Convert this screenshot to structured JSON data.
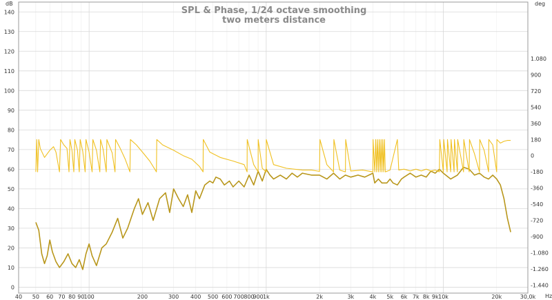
{
  "chart_data": {
    "type": "line",
    "title": "SPL & Phase, 1/24 octave smoothing",
    "subtitle": "two meters distance",
    "x_scale": "log",
    "xlim": [
      40,
      30000
    ],
    "x_unit": "Hz",
    "x_ticks": [
      40,
      50,
      60,
      70,
      80,
      90,
      100,
      200,
      300,
      400,
      500,
      600,
      700,
      800,
      900,
      1000,
      2000,
      3000,
      4000,
      5000,
      6000,
      7000,
      8000,
      9000,
      10000,
      20000,
      30000
    ],
    "x_tick_labels": [
      "40",
      "50",
      "60",
      "70",
      "80",
      "90",
      "100",
      "200",
      "300",
      "400",
      "500",
      "600",
      "700",
      "800",
      "900",
      "1k",
      "2k",
      "3k",
      "4k",
      "5k",
      "6k",
      "7k",
      "8k",
      "9k",
      "10k",
      "20k",
      "30,0k"
    ],
    "left_unit": "dB",
    "ylim": [
      -3,
      145
    ],
    "y_ticks": [
      0,
      10,
      20,
      30,
      40,
      50,
      60,
      70,
      80,
      90,
      100,
      110,
      120,
      130,
      140
    ],
    "right_unit": "deg",
    "y2lim": [
      -1530,
      1710
    ],
    "y2_ticks": [
      -1440,
      -1260,
      -1080,
      -900,
      -720,
      -540,
      -360,
      -180,
      0,
      180,
      360,
      540,
      720,
      900,
      1080
    ],
    "y2_tick_labels": [
      "-1.440",
      "-1.260",
      "-1.080",
      "-900",
      "-720",
      "-540",
      "-360",
      "-180",
      "0",
      "180",
      "360",
      "540",
      "720",
      "900",
      "1.080"
    ],
    "grid": true,
    "series": [
      {
        "role": "spl",
        "axis": "left",
        "color": "#b8961a",
        "points": [
          [
            50,
            33
          ],
          [
            52,
            29
          ],
          [
            54,
            17
          ],
          [
            56,
            12
          ],
          [
            58,
            16
          ],
          [
            60,
            24
          ],
          [
            62,
            18
          ],
          [
            65,
            13
          ],
          [
            68,
            10
          ],
          [
            72,
            13
          ],
          [
            76,
            17
          ],
          [
            80,
            12
          ],
          [
            84,
            10
          ],
          [
            88,
            14
          ],
          [
            92,
            9
          ],
          [
            96,
            17
          ],
          [
            100,
            22
          ],
          [
            104,
            16
          ],
          [
            110,
            11
          ],
          [
            118,
            20
          ],
          [
            125,
            22
          ],
          [
            135,
            28
          ],
          [
            145,
            35
          ],
          [
            155,
            25
          ],
          [
            165,
            30
          ],
          [
            180,
            40
          ],
          [
            190,
            45
          ],
          [
            200,
            37
          ],
          [
            215,
            43
          ],
          [
            230,
            34
          ],
          [
            250,
            45
          ],
          [
            270,
            48
          ],
          [
            285,
            38
          ],
          [
            300,
            50
          ],
          [
            320,
            45
          ],
          [
            340,
            41
          ],
          [
            360,
            47
          ],
          [
            380,
            38
          ],
          [
            400,
            49
          ],
          [
            420,
            45
          ],
          [
            450,
            52
          ],
          [
            480,
            54
          ],
          [
            500,
            53
          ],
          [
            520,
            56
          ],
          [
            550,
            55
          ],
          [
            580,
            52
          ],
          [
            620,
            54
          ],
          [
            650,
            51
          ],
          [
            700,
            54
          ],
          [
            750,
            51
          ],
          [
            800,
            57
          ],
          [
            850,
            52
          ],
          [
            900,
            59
          ],
          [
            950,
            54
          ],
          [
            1000,
            60
          ],
          [
            1050,
            57
          ],
          [
            1100,
            55
          ],
          [
            1200,
            57
          ],
          [
            1300,
            55
          ],
          [
            1400,
            58
          ],
          [
            1500,
            56
          ],
          [
            1600,
            58
          ],
          [
            1800,
            57
          ],
          [
            2000,
            57
          ],
          [
            2200,
            55
          ],
          [
            2400,
            58
          ],
          [
            2600,
            55
          ],
          [
            2800,
            57
          ],
          [
            3000,
            56
          ],
          [
            3300,
            57
          ],
          [
            3600,
            56
          ],
          [
            4000,
            58
          ],
          [
            4100,
            53
          ],
          [
            4300,
            55
          ],
          [
            4500,
            53
          ],
          [
            4800,
            53
          ],
          [
            5000,
            55
          ],
          [
            5200,
            53
          ],
          [
            5500,
            52
          ],
          [
            5800,
            55
          ],
          [
            6000,
            56
          ],
          [
            6500,
            58
          ],
          [
            7000,
            56
          ],
          [
            7500,
            57
          ],
          [
            8000,
            56
          ],
          [
            8500,
            59
          ],
          [
            9000,
            58
          ],
          [
            9500,
            60
          ],
          [
            10000,
            58
          ],
          [
            11000,
            55
          ],
          [
            12000,
            57
          ],
          [
            13000,
            61
          ],
          [
            14000,
            60
          ],
          [
            15000,
            57
          ],
          [
            16000,
            58
          ],
          [
            17000,
            56
          ],
          [
            18000,
            55
          ],
          [
            19000,
            57
          ],
          [
            20000,
            55
          ],
          [
            21000,
            52
          ],
          [
            22000,
            45
          ],
          [
            23000,
            35
          ],
          [
            24000,
            28
          ]
        ]
      },
      {
        "role": "phase",
        "axis": "right",
        "color": "#f0c020",
        "points": [
          [
            50,
            -180
          ],
          [
            50.6,
            180
          ],
          [
            51.2,
            -180
          ],
          [
            52,
            180
          ],
          [
            53,
            80
          ],
          [
            56,
            -20
          ],
          [
            60,
            60
          ],
          [
            63,
            100
          ],
          [
            65,
            40
          ],
          [
            68,
            -180
          ],
          [
            69,
            180
          ],
          [
            72,
            120
          ],
          [
            75,
            80
          ],
          [
            77,
            -180
          ],
          [
            78,
            180
          ],
          [
            80,
            60
          ],
          [
            82,
            -180
          ],
          [
            83,
            180
          ],
          [
            86,
            60
          ],
          [
            88,
            -180
          ],
          [
            89,
            180
          ],
          [
            92,
            50
          ],
          [
            95,
            -180
          ],
          [
            96,
            180
          ],
          [
            100,
            40
          ],
          [
            104,
            -180
          ],
          [
            105,
            180
          ],
          [
            110,
            60
          ],
          [
            115,
            -180
          ],
          [
            116,
            180
          ],
          [
            120,
            70
          ],
          [
            125,
            -180
          ],
          [
            126,
            180
          ],
          [
            135,
            30
          ],
          [
            140,
            -180
          ],
          [
            141,
            180
          ],
          [
            150,
            80
          ],
          [
            160,
            -40
          ],
          [
            170,
            -180
          ],
          [
            171,
            180
          ],
          [
            185,
            120
          ],
          [
            200,
            40
          ],
          [
            220,
            -60
          ],
          [
            240,
            -180
          ],
          [
            241,
            180
          ],
          [
            260,
            120
          ],
          [
            300,
            60
          ],
          [
            340,
            0
          ],
          [
            380,
            -40
          ],
          [
            420,
            -120
          ],
          [
            440,
            -180
          ],
          [
            441,
            180
          ],
          [
            480,
            40
          ],
          [
            550,
            -20
          ],
          [
            650,
            -60
          ],
          [
            750,
            -100
          ],
          [
            780,
            -180
          ],
          [
            781,
            180
          ],
          [
            850,
            -100
          ],
          [
            900,
            -180
          ],
          [
            901,
            180
          ],
          [
            950,
            -140
          ],
          [
            1000,
            -180
          ],
          [
            1001,
            180
          ],
          [
            1100,
            -100
          ],
          [
            1300,
            -140
          ],
          [
            1600,
            -160
          ],
          [
            1800,
            -160
          ],
          [
            2000,
            -175
          ],
          [
            2010,
            180
          ],
          [
            2200,
            -100
          ],
          [
            2400,
            -180
          ],
          [
            2410,
            180
          ],
          [
            2600,
            -160
          ],
          [
            2800,
            -180
          ],
          [
            2810,
            180
          ],
          [
            3000,
            -170
          ],
          [
            3500,
            -160
          ],
          [
            4000,
            -180
          ],
          [
            4010,
            180
          ],
          [
            4100,
            -180
          ],
          [
            4150,
            180
          ],
          [
            4200,
            -180
          ],
          [
            4250,
            180
          ],
          [
            4300,
            -180
          ],
          [
            4350,
            180
          ],
          [
            4400,
            -180
          ],
          [
            4450,
            180
          ],
          [
            4500,
            -180
          ],
          [
            4550,
            180
          ],
          [
            4600,
            -180
          ],
          [
            4650,
            180
          ],
          [
            4700,
            -180
          ],
          [
            5000,
            -160
          ],
          [
            5500,
            180
          ],
          [
            5600,
            -160
          ],
          [
            6000,
            -150
          ],
          [
            6500,
            -170
          ],
          [
            7000,
            -150
          ],
          [
            7500,
            -170
          ],
          [
            8000,
            -150
          ],
          [
            8500,
            -170
          ],
          [
            9000,
            -160
          ],
          [
            9500,
            -180
          ],
          [
            9550,
            180
          ],
          [
            10000,
            -180
          ],
          [
            10050,
            180
          ],
          [
            10500,
            -180
          ],
          [
            10550,
            180
          ],
          [
            11000,
            -180
          ],
          [
            11050,
            180
          ],
          [
            11500,
            -180
          ],
          [
            11550,
            180
          ],
          [
            12000,
            -180
          ],
          [
            12050,
            180
          ],
          [
            13000,
            -180
          ],
          [
            13050,
            180
          ],
          [
            14000,
            -180
          ],
          [
            14050,
            180
          ],
          [
            15000,
            20
          ],
          [
            16000,
            -180
          ],
          [
            16050,
            180
          ],
          [
            17000,
            60
          ],
          [
            18000,
            -180
          ],
          [
            18050,
            180
          ],
          [
            19000,
            120
          ],
          [
            20000,
            -180
          ],
          [
            20050,
            180
          ],
          [
            21000,
            140
          ],
          [
            22000,
            160
          ],
          [
            23000,
            170
          ],
          [
            24000,
            170
          ]
        ]
      }
    ]
  }
}
